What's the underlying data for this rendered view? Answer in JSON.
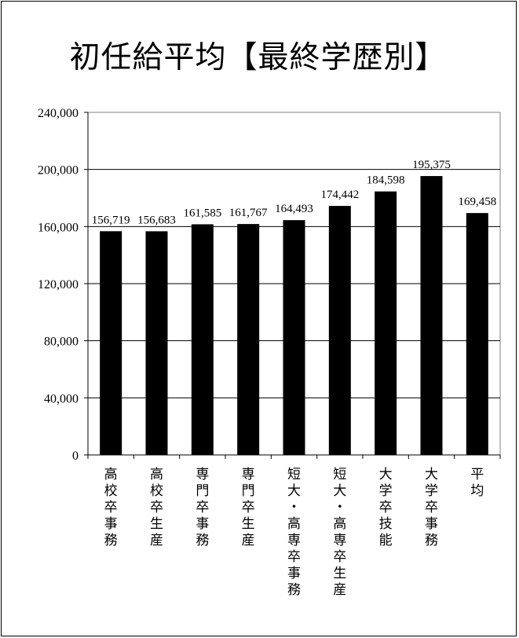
{
  "title": "初任給平均【最終学歴別】",
  "chart_data": {
    "type": "bar",
    "title": "初任給平均【最終学歴別】",
    "categories": [
      "高校卒事務",
      "高校卒生産",
      "専門卒事務",
      "専門卒生産",
      "短大・高専卒事務",
      "短大・高専卒生産",
      "大学卒技能",
      "大学卒事務",
      "平均"
    ],
    "values": [
      156719,
      156683,
      161585,
      161767,
      164493,
      174442,
      184598,
      195375,
      169458
    ],
    "value_labels": [
      "156,719",
      "156,683",
      "161,585",
      "161,767",
      "164,493",
      "174,442",
      "184,598",
      "195,375",
      "169,458"
    ],
    "ylim": [
      0,
      240000
    ],
    "yticks": [
      0,
      40000,
      80000,
      120000,
      160000,
      200000,
      240000
    ],
    "ytick_labels": [
      "0",
      "40,000",
      "80,000",
      "120,000",
      "160,000",
      "200,000",
      "240,000"
    ],
    "grid": true,
    "bar_color": "#000000"
  }
}
